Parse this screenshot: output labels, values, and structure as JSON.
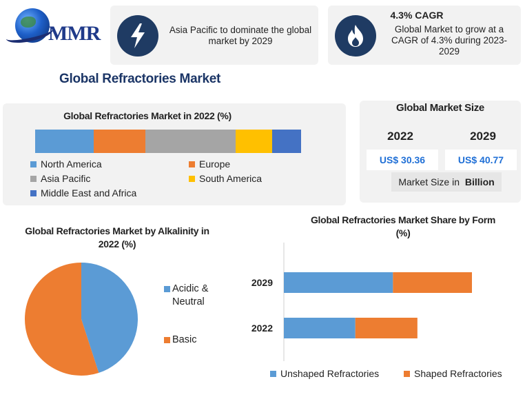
{
  "brand": {
    "logo_text": "MMR"
  },
  "info_cards": {
    "card1": {
      "icon": "lightning-icon",
      "text": "Asia Pacific to dominate the global market by 2029"
    },
    "card2": {
      "icon": "flame-icon",
      "heading": "4.3% CAGR",
      "text": "Global Market to grow at a CAGR of 4.3% during 2023-2029"
    }
  },
  "main_title": "Global Refractories Market",
  "market_size": {
    "title": "Global Market Size",
    "years": [
      "2022",
      "2029"
    ],
    "values": [
      "US$ 30.36",
      "US$ 40.77"
    ],
    "note_prefix": "Market Size in ",
    "note_unit": "Billion"
  },
  "colors": {
    "blue": "#5b9bd5",
    "orange": "#ed7d31",
    "gray": "#a5a5a5",
    "yellow": "#ffc000",
    "dark_blue": "#4472c4",
    "navy": "#1f3b63"
  },
  "chart_data": [
    {
      "type": "bar",
      "orientation": "horizontal-stacked-100",
      "title": "Global Refractories Market in 2022 (%)",
      "series": [
        {
          "name": "North America",
          "values": [
            22
          ],
          "color": "#5b9bd5"
        },
        {
          "name": "Europe",
          "values": [
            19.5
          ],
          "color": "#ed7d31"
        },
        {
          "name": "Asia Pacific",
          "values": [
            34
          ],
          "color": "#a5a5a5"
        },
        {
          "name": "South America",
          "values": [
            13.5
          ],
          "color": "#ffc000"
        },
        {
          "name": "Middle East and Africa",
          "values": [
            11
          ],
          "color": "#4472c4"
        }
      ],
      "legend": "bottom"
    },
    {
      "type": "pie",
      "title": "Global Refractories Market by Alkalinity in 2022 (%)",
      "labels": [
        "Acidic & Neutral",
        "Basic"
      ],
      "values": [
        45,
        55
      ],
      "colors": [
        "#5b9bd5",
        "#ed7d31"
      ],
      "legend": "right"
    },
    {
      "type": "bar",
      "orientation": "horizontal-stacked",
      "title": "Global Refractories Market Share by Form (%)",
      "categories": [
        "2029",
        "2022"
      ],
      "series": [
        {
          "name": "Unshaped Refractories",
          "values": [
            58,
            38
          ],
          "color": "#5b9bd5"
        },
        {
          "name": "Shaped Refractories",
          "values": [
            42,
            33
          ],
          "color": "#ed7d31"
        }
      ],
      "legend": "bottom"
    }
  ]
}
